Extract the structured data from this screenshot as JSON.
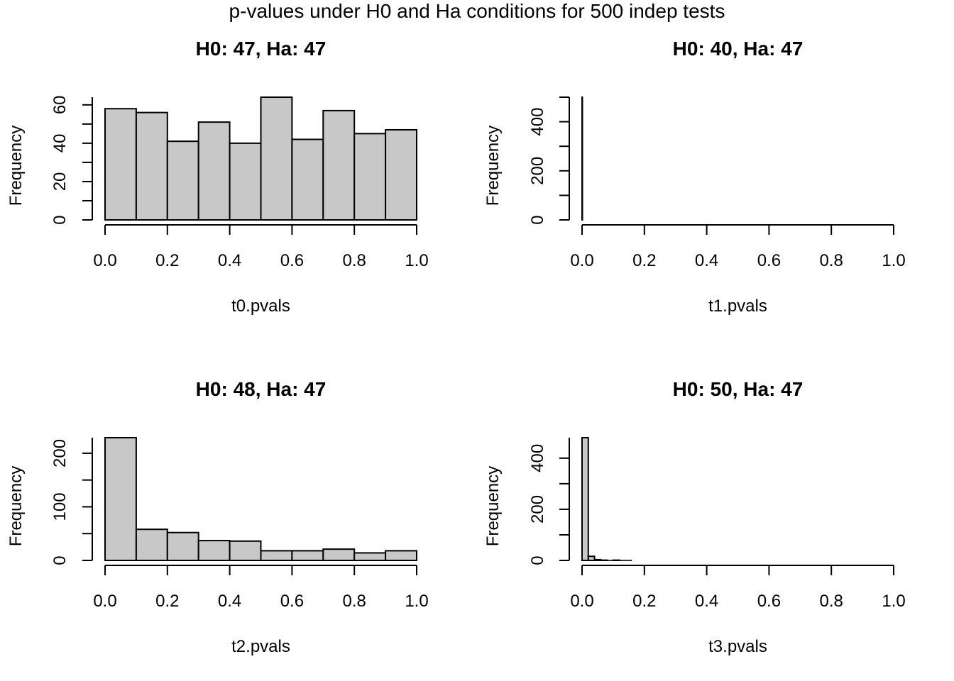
{
  "figure": {
    "title": "p-values under H0 and Ha conditions for 500 indep tests"
  },
  "chart_data": [
    {
      "type": "bar",
      "title": "H0: 47, Ha: 47",
      "xlabel": "t0.pvals",
      "ylabel": "Frequency",
      "bin_edges": [
        0.0,
        0.1,
        0.2,
        0.3,
        0.4,
        0.5,
        0.6,
        0.7,
        0.8,
        0.9,
        1.0
      ],
      "values": [
        58,
        56,
        41,
        51,
        40,
        64,
        42,
        57,
        45,
        47
      ],
      "xlim": [
        0,
        1
      ],
      "ylim": [
        0,
        64
      ],
      "xticks": [
        "0.0",
        "0.2",
        "0.4",
        "0.6",
        "0.8",
        "1.0"
      ],
      "yticks": [
        "0",
        "20",
        "40",
        "60"
      ],
      "ytick_values": [
        0,
        20,
        40,
        60
      ],
      "y_minor_step": 10,
      "fill": "#c8c8c8",
      "grid": false
    },
    {
      "type": "bar",
      "title": "H0: 40, Ha: 47",
      "xlabel": "t1.pvals",
      "ylabel": "Frequency",
      "bin_edges": [
        0.0,
        0.001
      ],
      "values": [
        500
      ],
      "xlim": [
        0,
        1
      ],
      "ylim": [
        0,
        500
      ],
      "xticks": [
        "0.0",
        "0.2",
        "0.4",
        "0.6",
        "0.8",
        "1.0"
      ],
      "yticks": [
        "0",
        "200",
        "400"
      ],
      "ytick_values": [
        0,
        200,
        400
      ],
      "y_minor_step": 100,
      "fill": "#c8c8c8",
      "grid": false
    },
    {
      "type": "bar",
      "title": "H0: 48, Ha: 47",
      "xlabel": "t2.pvals",
      "ylabel": "Frequency",
      "bin_edges": [
        0.0,
        0.1,
        0.2,
        0.3,
        0.4,
        0.5,
        0.6,
        0.7,
        0.8,
        0.9,
        1.0
      ],
      "values": [
        229,
        58,
        52,
        37,
        36,
        18,
        18,
        21,
        14,
        18
      ],
      "xlim": [
        0,
        1
      ],
      "ylim": [
        0,
        229
      ],
      "xticks": [
        "0.0",
        "0.2",
        "0.4",
        "0.6",
        "0.8",
        "1.0"
      ],
      "yticks": [
        "0",
        "100",
        "200"
      ],
      "ytick_values": [
        0,
        100,
        200
      ],
      "y_minor_step": 50,
      "fill": "#c8c8c8",
      "grid": false
    },
    {
      "type": "bar",
      "title": "H0: 50, Ha: 47",
      "xlabel": "t3.pvals",
      "ylabel": "Frequency",
      "bin_edges": [
        0.0,
        0.02,
        0.04,
        0.06,
        0.08,
        0.1,
        0.12,
        0.14,
        0.16
      ],
      "values": [
        480,
        16,
        3,
        1,
        0,
        1,
        0,
        0
      ],
      "xlim": [
        0,
        1
      ],
      "ylim": [
        0,
        480
      ],
      "xticks": [
        "0.0",
        "0.2",
        "0.4",
        "0.6",
        "0.8",
        "1.0"
      ],
      "yticks": [
        "0",
        "200",
        "400"
      ],
      "ytick_values": [
        0,
        200,
        400
      ],
      "y_minor_step": 100,
      "fill": "#c8c8c8",
      "grid": false
    }
  ]
}
